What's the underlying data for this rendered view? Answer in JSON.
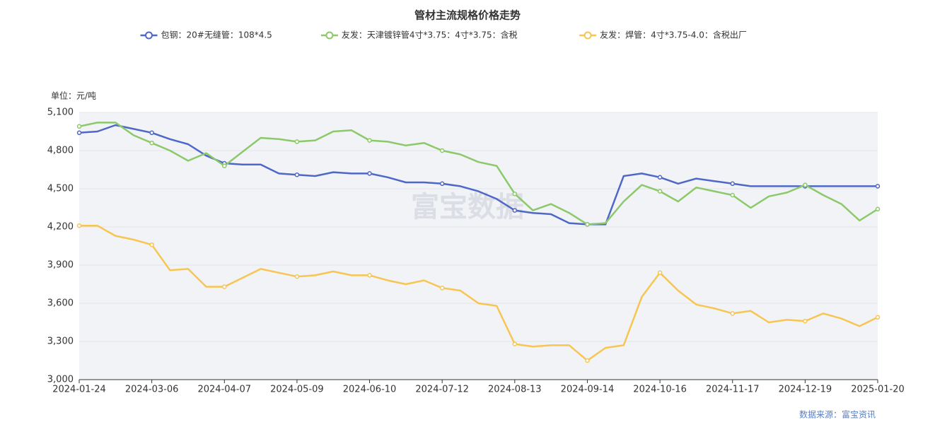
{
  "chart_data": {
    "type": "line",
    "title": "管材主流规格价格走势",
    "unit_label": "单位：元/吨",
    "source": "数据来源：富宝资讯",
    "watermark": "富宝数据",
    "categories": [
      "2024-01-24",
      null,
      null,
      null,
      "2024-03-06",
      null,
      null,
      null,
      "2024-04-07",
      null,
      null,
      null,
      "2024-05-09",
      null,
      null,
      null,
      "2024-06-10",
      null,
      null,
      null,
      "2024-07-12",
      null,
      null,
      null,
      "2024-08-13",
      null,
      null,
      null,
      "2024-09-14",
      null,
      null,
      null,
      "2024-10-16",
      null,
      null,
      null,
      "2024-11-17",
      null,
      null,
      null,
      "2024-12-19",
      null,
      null,
      null,
      "2025-01-20"
    ],
    "series": [
      {
        "name": "包钢：20#无缝管：108*4.5",
        "color": "#4e67c8",
        "values": [
          4940,
          4950,
          5000,
          4970,
          4940,
          4890,
          4850,
          4760,
          4700,
          4690,
          4690,
          4620,
          4610,
          4600,
          4630,
          4620,
          4620,
          4590,
          4550,
          4550,
          4540,
          4520,
          4480,
          4420,
          4330,
          4310,
          4300,
          4230,
          4220,
          4220,
          4600,
          4620,
          4590,
          4540,
          4580,
          4560,
          4540,
          4520,
          4520,
          4520,
          4520,
          4520,
          4520,
          4520,
          4520
        ]
      },
      {
        "name": "友发：天津镀锌管4寸*3.75：4寸*3.75：含税",
        "color": "#8cc96a",
        "values": [
          4990,
          5020,
          5020,
          4920,
          4860,
          4800,
          4720,
          4780,
          4680,
          4790,
          4900,
          4890,
          4870,
          4880,
          4950,
          4960,
          4880,
          4870,
          4840,
          4860,
          4800,
          4770,
          4710,
          4680,
          4460,
          4330,
          4380,
          4310,
          4220,
          4230,
          4400,
          4530,
          4480,
          4400,
          4510,
          4480,
          4450,
          4350,
          4440,
          4470,
          4530,
          4450,
          4380,
          4250,
          4340
        ]
      },
      {
        "name": "友发：焊管：4寸*3.75-4.0：含税出厂",
        "color": "#f7c551",
        "values": [
          4210,
          4210,
          4130,
          4100,
          4060,
          3860,
          3870,
          3730,
          3730,
          3800,
          3870,
          3840,
          3810,
          3820,
          3850,
          3820,
          3820,
          3780,
          3750,
          3780,
          3720,
          3700,
          3600,
          3580,
          3280,
          3260,
          3270,
          3270,
          3150,
          3250,
          3270,
          3650,
          3840,
          3700,
          3590,
          3560,
          3520,
          3540,
          3450,
          3470,
          3460,
          3520,
          3480,
          3420,
          3490
        ]
      }
    ],
    "ylim": [
      3000,
      5100
    ],
    "yticks": [
      {
        "value": 3000,
        "label": "3,000"
      },
      {
        "value": 3300,
        "label": "3,300"
      },
      {
        "value": 3600,
        "label": "3,600"
      },
      {
        "value": 3900,
        "label": "3,900"
      },
      {
        "value": 4200,
        "label": "4,200"
      },
      {
        "value": 4500,
        "label": "4,500"
      },
      {
        "value": 4800,
        "label": "4,800"
      },
      {
        "value": 5100,
        "label": "5,100"
      }
    ],
    "grid": true
  }
}
